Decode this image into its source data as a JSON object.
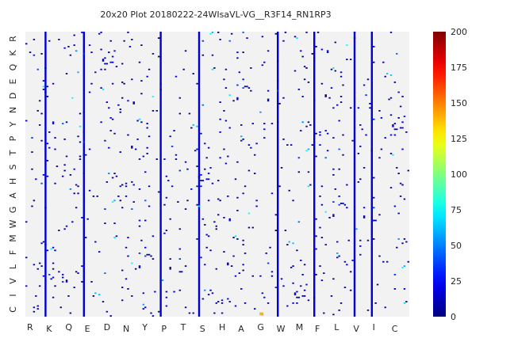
{
  "chart_data": {
    "type": "heatmap",
    "title": "20x20 Plot 20180222-24WIsaVL-VG__R3F14_RN1RP3",
    "xlabel": "",
    "ylabel": "",
    "x_categories": [
      "R",
      "K",
      "Q",
      "E",
      "D",
      "N",
      "Y",
      "P",
      "T",
      "S",
      "H",
      "A",
      "G",
      "W",
      "M",
      "F",
      "L",
      "V",
      "I",
      "C"
    ],
    "y_categories_top_to_bottom": [
      "R",
      "K",
      "Q",
      "E",
      "D",
      "N",
      "Y",
      "P",
      "T",
      "S",
      "H",
      "A",
      "G",
      "W",
      "M",
      "F",
      "L",
      "V",
      "I",
      "C"
    ],
    "colorbar": {
      "min": 0,
      "max": 200,
      "ticks": [
        0,
        25,
        50,
        75,
        100,
        125,
        150,
        175,
        200
      ],
      "colormap": "jet"
    },
    "background_color": "#f2f2f2",
    "grid": false,
    "notes_on_distribution": "Sparse matrix; strongest/densest columns at K, E, P, S, W, F, V, I (values ~0-75), one hot spot near G (~140)."
  }
}
